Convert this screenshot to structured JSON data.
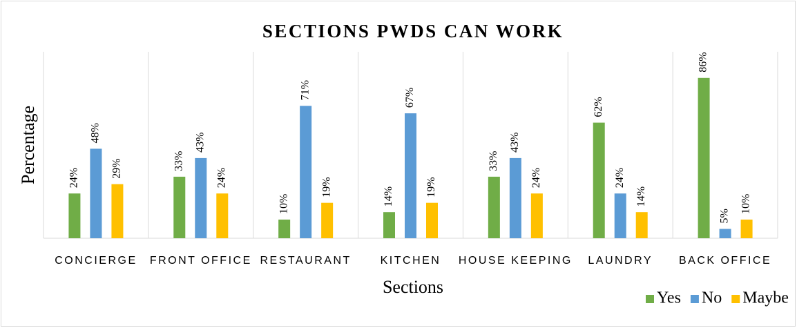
{
  "chart_data": {
    "type": "bar",
    "title": "SECTIONS PWDS CAN WORK",
    "x_label": "Sections",
    "y_label": "Percentage",
    "categories": [
      "CONCIERGE",
      "FRONT OFFICE",
      "RESTAURANT",
      "KITCHEN",
      "HOUSE KEEPING",
      "LAUNDRY",
      "BACK OFFICE"
    ],
    "series": [
      {
        "name": "Yes",
        "color": "#70ad47",
        "values": [
          24,
          33,
          10,
          14,
          33,
          62,
          86
        ],
        "value_labels": [
          "24%",
          "33%",
          "10%",
          "14%",
          "33%",
          "62%",
          "86%"
        ]
      },
      {
        "name": "No",
        "color": "#5b9bd5",
        "values": [
          48,
          43,
          71,
          67,
          43,
          24,
          5
        ],
        "value_labels": [
          "48%",
          "43%",
          "71%",
          "67%",
          "43%",
          "24%",
          "5%"
        ]
      },
      {
        "name": "Maybe",
        "color": "#ffc000",
        "values": [
          29,
          24,
          19,
          19,
          24,
          14,
          10
        ],
        "value_labels": [
          "29%",
          "24%",
          "19%",
          "19%",
          "24%",
          "14%",
          "10%"
        ]
      }
    ],
    "ylim": [
      0,
      100
    ],
    "legend": "bottom-right"
  }
}
